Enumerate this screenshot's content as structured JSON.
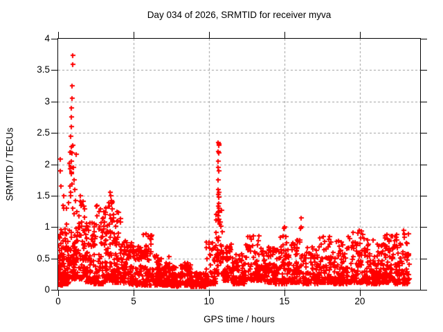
{
  "chart": {
    "title": "Day 034 of 2026, SRMTID for receiver myva",
    "xlabel": "GPS time / hours",
    "ylabel": "SRMTID / TECUs",
    "marker_color": "#ff0000",
    "grid_color": "#9a9a9a",
    "axis_color": "#000000",
    "background_color": "#ffffff"
  },
  "chart_data": {
    "type": "scatter",
    "title": "Day 034 of 2026, SRMTID for receiver myva",
    "xlabel": "GPS time / hours",
    "ylabel": "SRMTID / TECUs",
    "series_name": "SRMTID",
    "marker": "plus",
    "color": "#ff0000",
    "grid": true,
    "legend": "none",
    "xlim": [
      0,
      24
    ],
    "ylim": [
      0,
      4
    ],
    "x_ticks": [
      0,
      5,
      10,
      15,
      20
    ],
    "x_tick_labels": [
      "0",
      "5",
      "10",
      "15",
      "20"
    ],
    "y_ticks": [
      0,
      0.5,
      1,
      1.5,
      2,
      2.5,
      3,
      3.5,
      4
    ],
    "y_tick_labels": [
      "0",
      "0.5",
      "1",
      "1.5",
      "2",
      "2.5",
      "3",
      "3.5",
      "4"
    ],
    "data_x_range": [
      0.02,
      23.3
    ],
    "seed": 1234567,
    "envelope_segments_comment": "Each segment: [x_start_hr, x_end_hr, n_points, y_min_TECU, y_max_TECU, low_bias_power] approximating the dense scatter band read from the plot",
    "envelope_segments": [
      [
        0.0,
        0.3,
        55,
        0.08,
        1.1,
        2.2
      ],
      [
        0.3,
        0.7,
        60,
        0.1,
        1.5,
        2.4
      ],
      [
        0.7,
        1.2,
        70,
        0.18,
        2.4,
        2.6
      ],
      [
        1.2,
        1.8,
        70,
        0.18,
        1.45,
        2.2
      ],
      [
        1.8,
        2.4,
        70,
        0.12,
        1.1,
        2.2
      ],
      [
        2.4,
        3.0,
        70,
        0.1,
        1.35,
        2.4
      ],
      [
        3.0,
        3.6,
        75,
        0.15,
        1.5,
        2.2
      ],
      [
        3.6,
        4.2,
        75,
        0.12,
        1.25,
        2.4
      ],
      [
        4.2,
        4.9,
        70,
        0.1,
        0.85,
        2.2
      ],
      [
        4.9,
        5.6,
        70,
        0.08,
        0.7,
        2.0
      ],
      [
        5.6,
        6.2,
        65,
        0.08,
        0.9,
        2.4
      ],
      [
        6.2,
        6.9,
        65,
        0.08,
        0.55,
        2.0
      ],
      [
        6.9,
        7.5,
        65,
        0.08,
        0.62,
        2.2
      ],
      [
        7.5,
        8.4,
        80,
        0.06,
        0.4,
        2.0
      ],
      [
        8.4,
        8.8,
        40,
        0.07,
        0.5,
        2.0
      ],
      [
        8.8,
        9.8,
        85,
        0.05,
        0.28,
        1.8
      ],
      [
        9.8,
        10.45,
        60,
        0.1,
        0.8,
        2.4
      ],
      [
        10.45,
        10.9,
        45,
        0.25,
        1.3,
        1.6
      ],
      [
        10.9,
        11.6,
        70,
        0.15,
        0.75,
        2.0
      ],
      [
        11.6,
        12.4,
        70,
        0.1,
        0.6,
        2.0
      ],
      [
        12.4,
        13.6,
        95,
        0.15,
        0.9,
        2.2
      ],
      [
        13.6,
        14.4,
        75,
        0.12,
        0.7,
        2.0
      ],
      [
        14.4,
        15.3,
        75,
        0.1,
        0.9,
        2.2
      ],
      [
        15.3,
        16.2,
        75,
        0.12,
        0.8,
        2.2
      ],
      [
        16.2,
        17.2,
        80,
        0.1,
        0.68,
        2.0
      ],
      [
        17.2,
        18.2,
        85,
        0.12,
        0.85,
        2.2
      ],
      [
        18.2,
        19.2,
        85,
        0.1,
        0.78,
        2.2
      ],
      [
        19.2,
        20.3,
        90,
        0.12,
        0.95,
        2.3
      ],
      [
        20.3,
        21.3,
        90,
        0.1,
        0.82,
        2.2
      ],
      [
        21.3,
        22.3,
        90,
        0.12,
        0.9,
        2.3
      ],
      [
        22.3,
        23.3,
        95,
        0.1,
        0.95,
        2.2
      ]
    ],
    "outlier_points_comment": "Distinct high-value points [hour, TECU] read from the plot: morning spike near 1 h (max ~3.75), midday spike near 10.6 h (max ~2.35), isolated ~1.0-1.15 points near 15-16 h",
    "outlier_points": [
      [
        0.13,
        1.9
      ],
      [
        0.16,
        2.08
      ],
      [
        0.2,
        1.65
      ],
      [
        0.8,
        1.65
      ],
      [
        0.83,
        2.45
      ],
      [
        0.85,
        2.9
      ],
      [
        0.86,
        1.85
      ],
      [
        0.87,
        2.6
      ],
      [
        0.88,
        2.75
      ],
      [
        0.89,
        2.05
      ],
      [
        0.9,
        3.25
      ],
      [
        0.92,
        3.05
      ],
      [
        0.94,
        2.18
      ],
      [
        0.95,
        3.74
      ],
      [
        0.96,
        3.59
      ],
      [
        0.97,
        2.3
      ],
      [
        1.0,
        1.95
      ],
      [
        1.05,
        1.75
      ],
      [
        1.1,
        1.6
      ],
      [
        1.45,
        1.5
      ],
      [
        1.5,
        1.4
      ],
      [
        1.55,
        1.35
      ],
      [
        3.45,
        1.55
      ],
      [
        3.5,
        1.5
      ],
      [
        3.55,
        1.42
      ],
      [
        10.58,
        1.1
      ],
      [
        10.6,
        1.95
      ],
      [
        10.6,
        1.6
      ],
      [
        10.6,
        1.25
      ],
      [
        10.61,
        1.52
      ],
      [
        10.62,
        2.35
      ],
      [
        10.62,
        2.05
      ],
      [
        10.62,
        1.75
      ],
      [
        10.62,
        1.33
      ],
      [
        10.62,
        1.18
      ],
      [
        10.63,
        2.33
      ],
      [
        10.63,
        1.9
      ],
      [
        10.63,
        1.48
      ],
      [
        10.64,
        2.18
      ],
      [
        10.64,
        1.55
      ],
      [
        10.64,
        1.3
      ],
      [
        10.65,
        2.3
      ],
      [
        10.6,
        2.2
      ],
      [
        10.66,
        1.38
      ],
      [
        14.95,
        0.98
      ],
      [
        15.0,
        1.0
      ],
      [
        16.08,
        0.98
      ],
      [
        16.1,
        1.15
      ],
      [
        16.12,
        1.0
      ]
    ]
  }
}
